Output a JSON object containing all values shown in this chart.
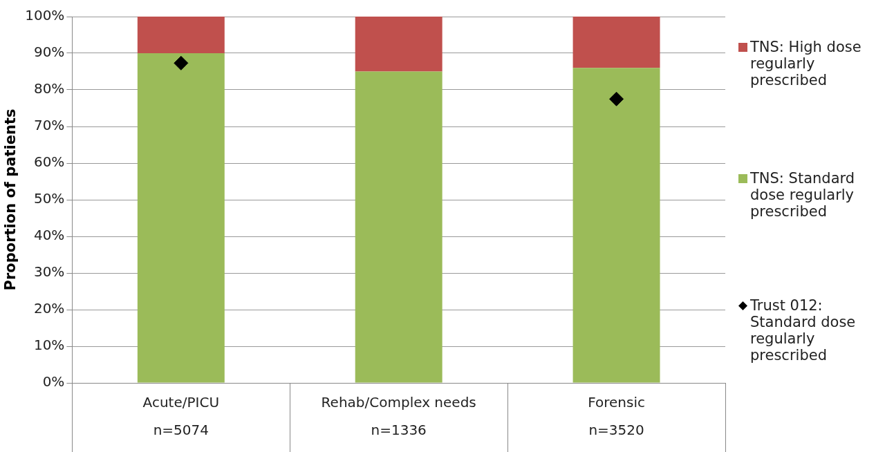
{
  "chart_data": {
    "type": "bar",
    "stacked": true,
    "ylabel": "Proportion of patients",
    "categories": [
      "Acute/PICU\nn=5074",
      "Rehab/Complex needs\nn=1336",
      "Forensic\nn=3520"
    ],
    "ylim": [
      0,
      100
    ],
    "yticks": [
      {
        "value": 0,
        "label": "0%"
      },
      {
        "value": 10,
        "label": "10%"
      },
      {
        "value": 20,
        "label": "20%"
      },
      {
        "value": 30,
        "label": "30%"
      },
      {
        "value": 40,
        "label": "40%"
      },
      {
        "value": 50,
        "label": "50%"
      },
      {
        "value": 60,
        "label": "60%"
      },
      {
        "value": 70,
        "label": "70%"
      },
      {
        "value": 80,
        "label": "80%"
      },
      {
        "value": 90,
        "label": "90%"
      },
      {
        "value": 100,
        "label": "100%"
      }
    ],
    "grid": "y",
    "legend": "right",
    "series": [
      {
        "name": "TNS: Standard dose regularly prescribed",
        "color": "#9bbb59",
        "values": [
          90,
          85,
          86
        ]
      },
      {
        "name": "TNS: High dose regularly prescribed",
        "color": "#c0504d",
        "values": [
          10,
          15,
          14
        ]
      },
      {
        "name": "Trust 012: Standard dose regularly prescribed",
        "type": "scatter",
        "marker": "diamond",
        "color": "#000000",
        "values": [
          87.3,
          null,
          77.5
        ]
      }
    ]
  }
}
